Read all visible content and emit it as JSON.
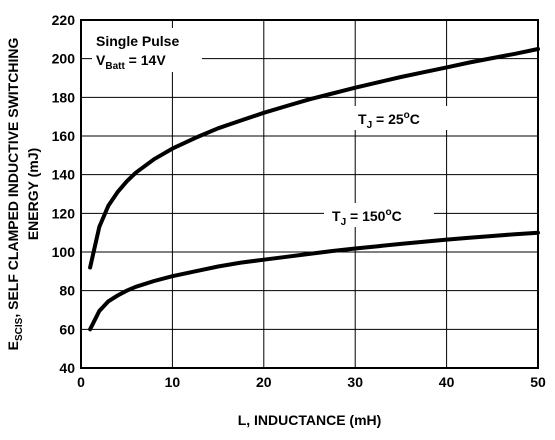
{
  "chart_data": {
    "type": "line",
    "xlabel": "L, INDUCTANCE (mH)",
    "ylabel": {
      "main": "E",
      "sub": "SCIS",
      "line1_rest": ", SELF CLAMPED INDUCTIVE SWITCHING",
      "line2": "ENERGY (mJ)"
    },
    "xlim": [
      0,
      50
    ],
    "ylim": [
      40,
      220
    ],
    "x_ticks": [
      "0",
      "10",
      "20",
      "30",
      "40",
      "50"
    ],
    "y_ticks": [
      "40",
      "60",
      "80",
      "100",
      "120",
      "140",
      "160",
      "180",
      "200",
      "220"
    ],
    "grid": true,
    "annotations": {
      "condition_title": "Single Pulse",
      "condition_vbatt_main": "V",
      "condition_vbatt_sub": "Batt",
      "condition_vbatt_rest": " = 14V"
    },
    "series": [
      {
        "name": "T_J = 25°C",
        "label_main": "T",
        "label_sub": "J",
        "label_rest": " = 25",
        "label_sup": "o",
        "label_unit": "C",
        "x": [
          1,
          2,
          3,
          4,
          5,
          6,
          8,
          10,
          12.5,
          15,
          17.5,
          20,
          22.5,
          25,
          27.5,
          30,
          32.5,
          35,
          37.5,
          40,
          42.5,
          45,
          47.5,
          50
        ],
        "y": [
          92,
          113,
          124,
          131,
          136.5,
          141,
          148,
          153.5,
          159,
          164,
          168,
          172,
          175.5,
          179,
          182,
          185,
          187.8,
          190.5,
          193,
          195.5,
          198,
          200.3,
          202.5,
          205
        ]
      },
      {
        "name": "T_J = 150°C",
        "label_main": "T",
        "label_sub": "J",
        "label_rest": " = 150",
        "label_sup": "o",
        "label_unit": "C",
        "x": [
          1,
          2,
          3,
          4,
          5,
          6,
          8,
          10,
          12.5,
          15,
          17.5,
          20,
          22.5,
          25,
          27.5,
          30,
          32.5,
          35,
          37.5,
          40,
          42.5,
          45,
          47.5,
          50
        ],
        "y": [
          60,
          69.5,
          74.5,
          77.5,
          80,
          82,
          85,
          87.5,
          90,
          92.5,
          94.5,
          96,
          97.5,
          99,
          100.5,
          101.8,
          103,
          104.2,
          105.3,
          106.4,
          107.4,
          108.3,
          109.2,
          110
        ]
      }
    ]
  }
}
